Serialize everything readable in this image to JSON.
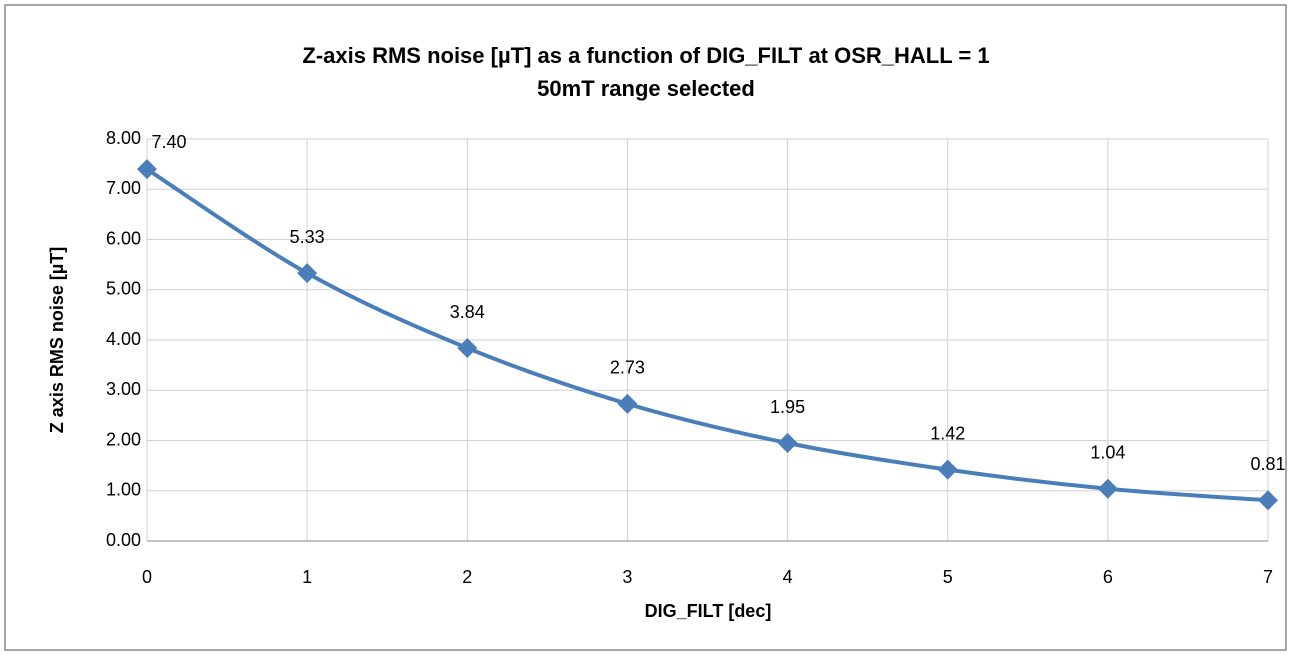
{
  "chart_data": {
    "type": "line",
    "title": "Z-axis RMS noise [µT] as a function of DIG_FILT at OSR_HALL = 1",
    "subtitle": "50mT range selected",
    "x_label": "DIG_FILT [dec]",
    "y_label": "Z axis RMS noise [µT]",
    "x": [
      0,
      1,
      2,
      3,
      4,
      5,
      6,
      7
    ],
    "series": [
      {
        "name": "Z-axis RMS noise",
        "color": "#4a7ebb",
        "values": [
          7.4,
          5.33,
          3.84,
          2.73,
          1.95,
          1.42,
          1.04,
          0.81
        ],
        "value_labels": [
          "7.40",
          "5.33",
          "3.84",
          "2.73",
          "1.95",
          "1.42",
          "1.04",
          "0.81"
        ]
      }
    ],
    "xlim": [
      0,
      7
    ],
    "xticks": [
      0,
      1,
      2,
      3,
      4,
      5,
      6,
      7
    ],
    "ylim": [
      0,
      8
    ],
    "yticks": [
      {
        "value": 0,
        "label": "0.00"
      },
      {
        "value": 1,
        "label": "1.00"
      },
      {
        "value": 2,
        "label": "2.00"
      },
      {
        "value": 3,
        "label": "3.00"
      },
      {
        "value": 4,
        "label": "4.00"
      },
      {
        "value": 5,
        "label": "5.00"
      },
      {
        "value": 6,
        "label": "6.00"
      },
      {
        "value": 7,
        "label": "7.00"
      },
      {
        "value": 8,
        "label": "8.00"
      }
    ],
    "grid": true,
    "smooth": true
  }
}
